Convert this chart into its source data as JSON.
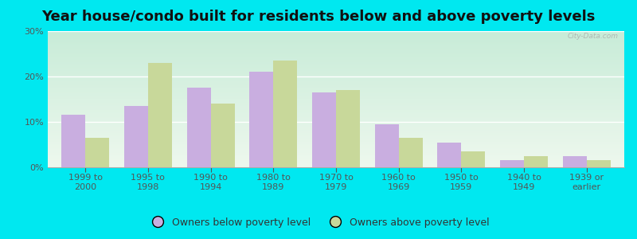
{
  "title": "Year house/condo built for residents below and above poverty levels",
  "categories": [
    "1999 to\n2000",
    "1995 to\n1998",
    "1990 to\n1994",
    "1980 to\n1989",
    "1970 to\n1979",
    "1960 to\n1969",
    "1950 to\n1959",
    "1940 to\n1949",
    "1939 or\nearlier"
  ],
  "below_poverty": [
    11.5,
    13.5,
    17.5,
    21.0,
    16.5,
    9.5,
    5.5,
    1.5,
    2.5
  ],
  "above_poverty": [
    6.5,
    23.0,
    14.0,
    23.5,
    17.0,
    6.5,
    3.5,
    2.5,
    1.5
  ],
  "below_color": "#c9aee0",
  "above_color": "#c8d89a",
  "outer_bg": "#00e8f0",
  "plot_bg_top": "#c8ecd8",
  "plot_bg_bottom": "#eef8ee",
  "ylim": [
    0,
    30
  ],
  "yticks": [
    0,
    10,
    20,
    30
  ],
  "title_fontsize": 13,
  "tick_fontsize": 8,
  "legend_fontsize": 9,
  "below_label": "Owners below poverty level",
  "above_label": "Owners above poverty level",
  "watermark": "City-Data.com",
  "bar_width": 0.38
}
